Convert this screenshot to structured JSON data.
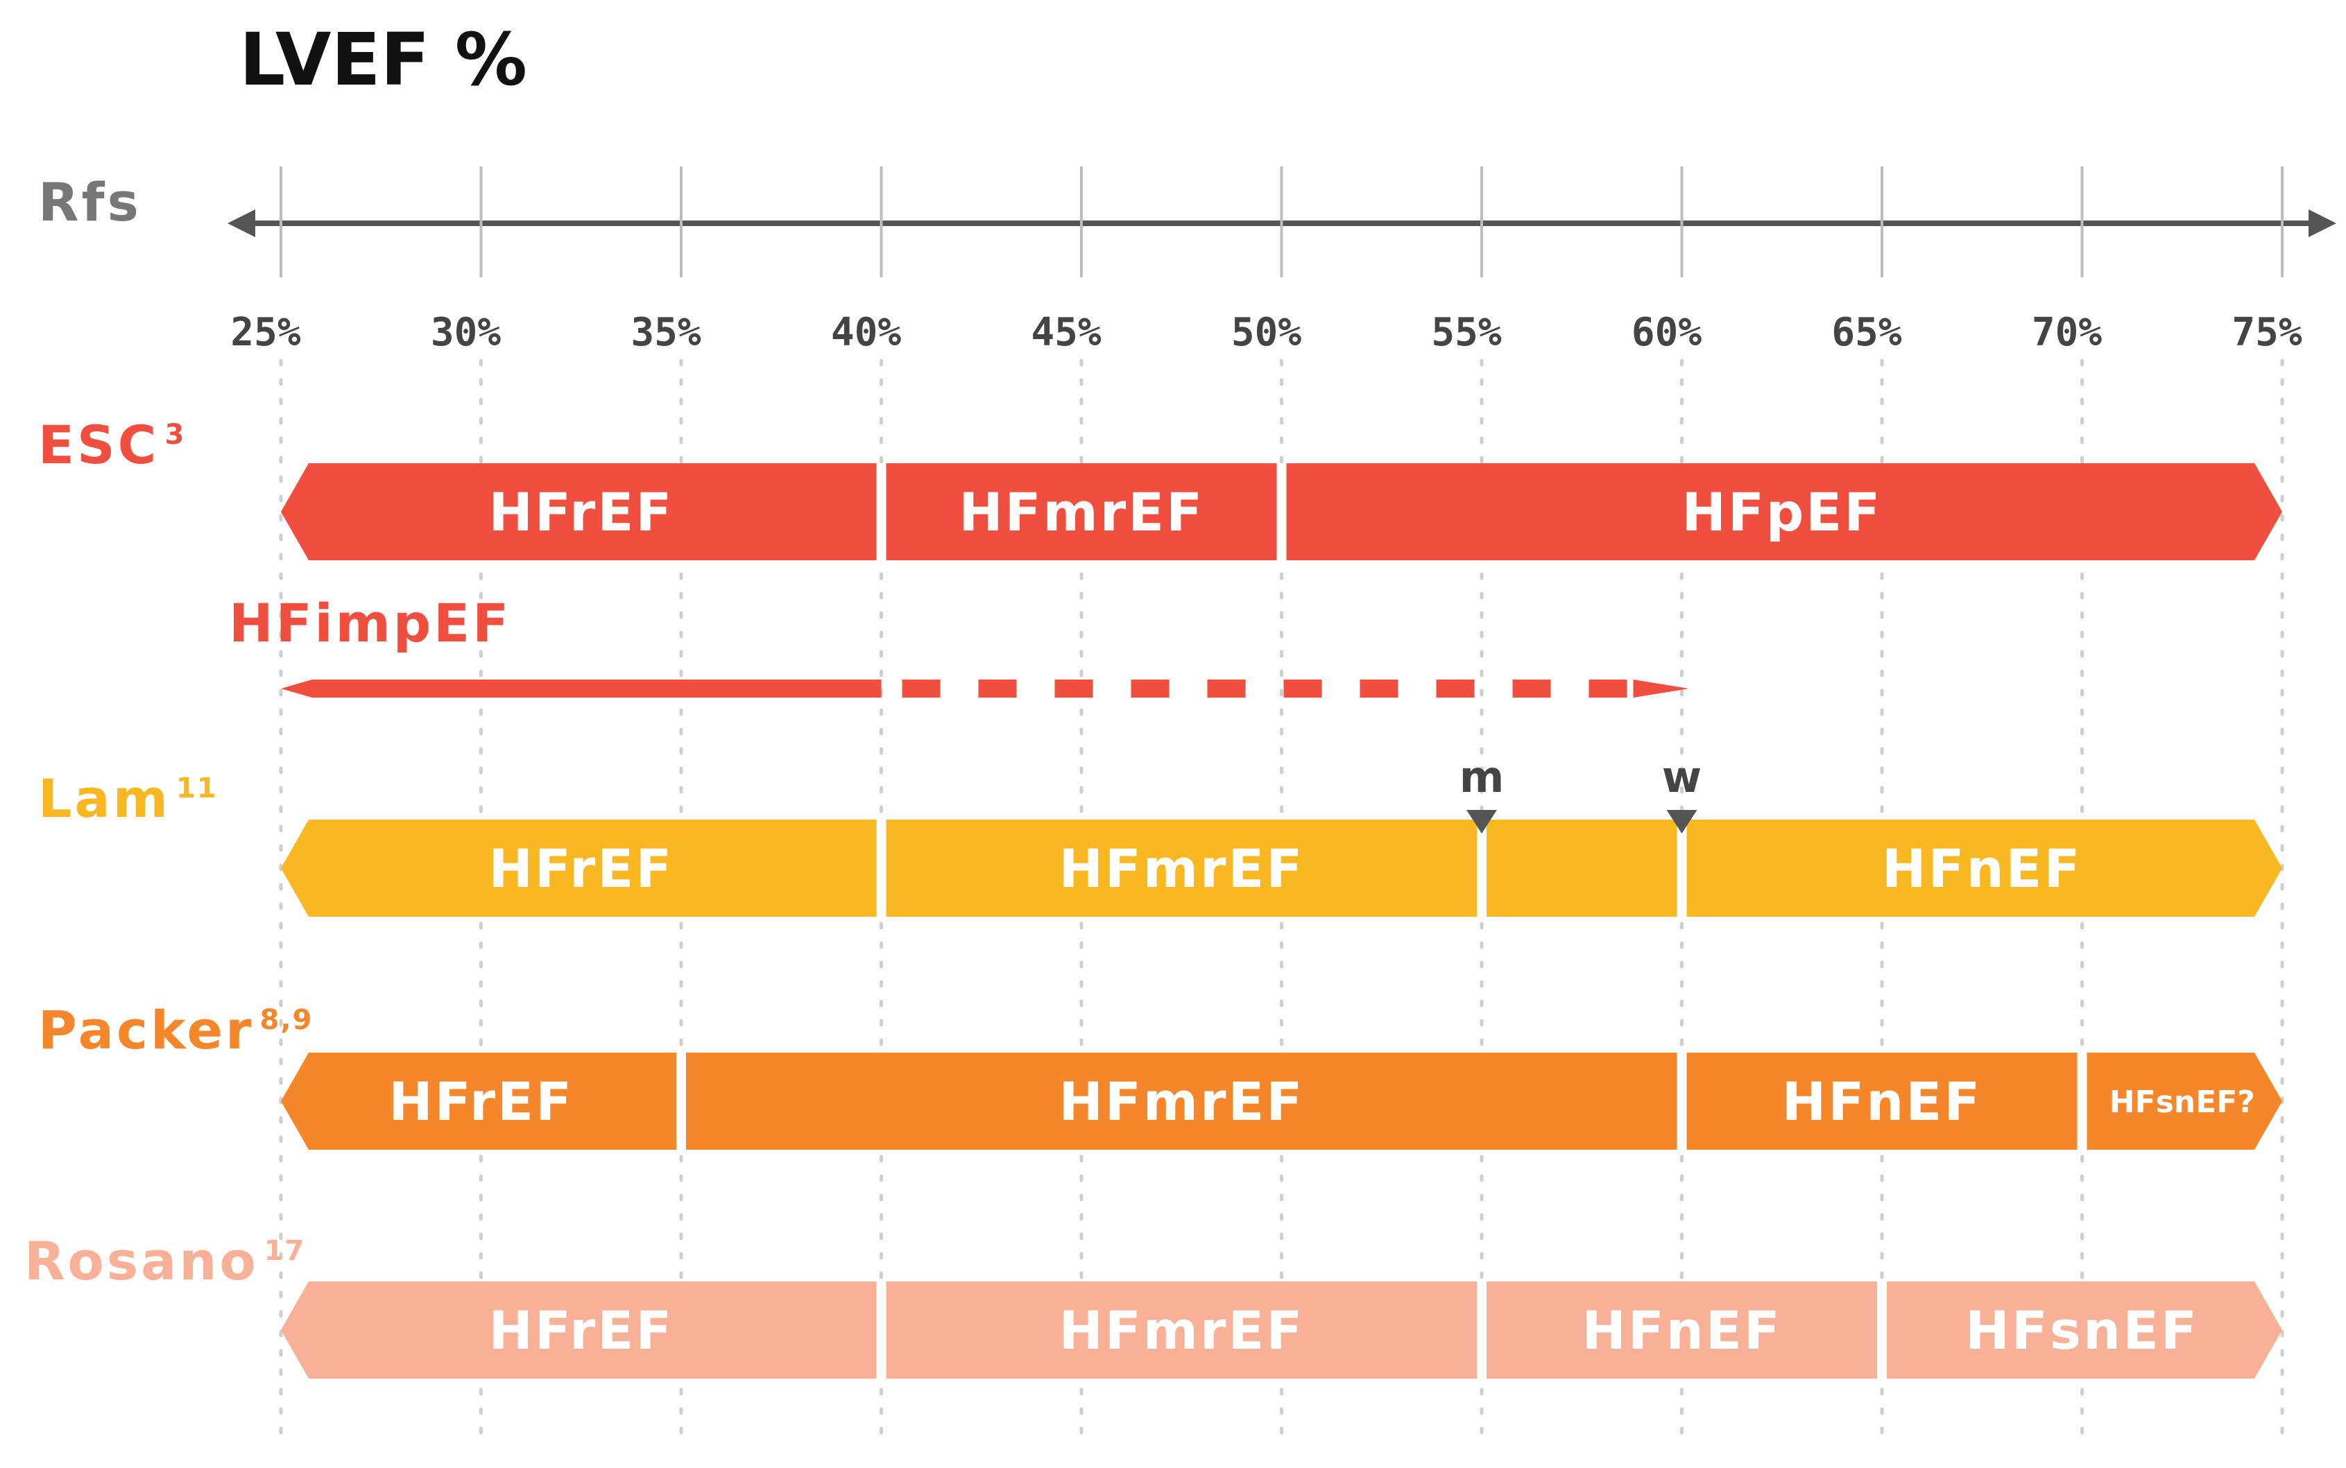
{
  "title": "LVEF %",
  "axis": {
    "label": "Rfs",
    "min": 25,
    "max": 75,
    "ticks": [
      25,
      30,
      35,
      40,
      45,
      50,
      55,
      60,
      65,
      70,
      75
    ],
    "tick_labels": [
      "25%",
      "30%",
      "35%",
      "40%",
      "45%",
      "50%",
      "55%",
      "60%",
      "65%",
      "70%",
      "75%"
    ],
    "colors": {
      "line": "#555555",
      "grid": "#cfcfcf",
      "tick_label": "#444444"
    }
  },
  "rows": [
    {
      "id": "esc",
      "name": "ESC",
      "sup": "3",
      "color": "#f04e3e",
      "segments": [
        {
          "label": "HFrEF",
          "from": 25,
          "to": 40
        },
        {
          "label": "HFmrEF",
          "from": 40,
          "to": 50
        },
        {
          "label": "HFpEF",
          "from": 50,
          "to": 75
        }
      ]
    },
    {
      "id": "hfimpef",
      "name": "HFimpEF",
      "sup": "",
      "color": "#f04e3e",
      "type": "arrow-line",
      "solid": {
        "from": 25,
        "to": 40
      },
      "dashed": {
        "from": 40,
        "to": 60
      }
    },
    {
      "id": "lam",
      "name": "Lam",
      "sup": "11",
      "color": "#f9b821",
      "segments": [
        {
          "label": "HFrEF",
          "from": 25,
          "to": 40
        },
        {
          "label": "HFmrEF",
          "from": 40,
          "to": 55
        },
        {
          "label": "",
          "from": 55,
          "to": 60
        },
        {
          "label": "HFnEF",
          "from": 60,
          "to": 75
        }
      ],
      "markers": [
        {
          "label": "m",
          "value": 55
        },
        {
          "label": "w",
          "value": 60
        }
      ]
    },
    {
      "id": "packer",
      "name": "Packer",
      "sup": "8,9",
      "color": "#f6862a",
      "segments": [
        {
          "label": "HFrEF",
          "from": 25,
          "to": 35
        },
        {
          "label": "HFmrEF",
          "from": 35,
          "to": 60
        },
        {
          "label": "HFnEF",
          "from": 60,
          "to": 70
        },
        {
          "label": "HFsnEF?",
          "from": 70,
          "to": 75,
          "small": true
        }
      ]
    },
    {
      "id": "rosano",
      "name": "Rosano",
      "sup": "17",
      "color": "#f8b196",
      "segments": [
        {
          "label": "HFrEF",
          "from": 25,
          "to": 40
        },
        {
          "label": "HFmrEF",
          "from": 40,
          "to": 55
        },
        {
          "label": "HFnEF",
          "from": 55,
          "to": 65
        },
        {
          "label": "HFsnEF",
          "from": 65,
          "to": 75
        }
      ]
    }
  ]
}
